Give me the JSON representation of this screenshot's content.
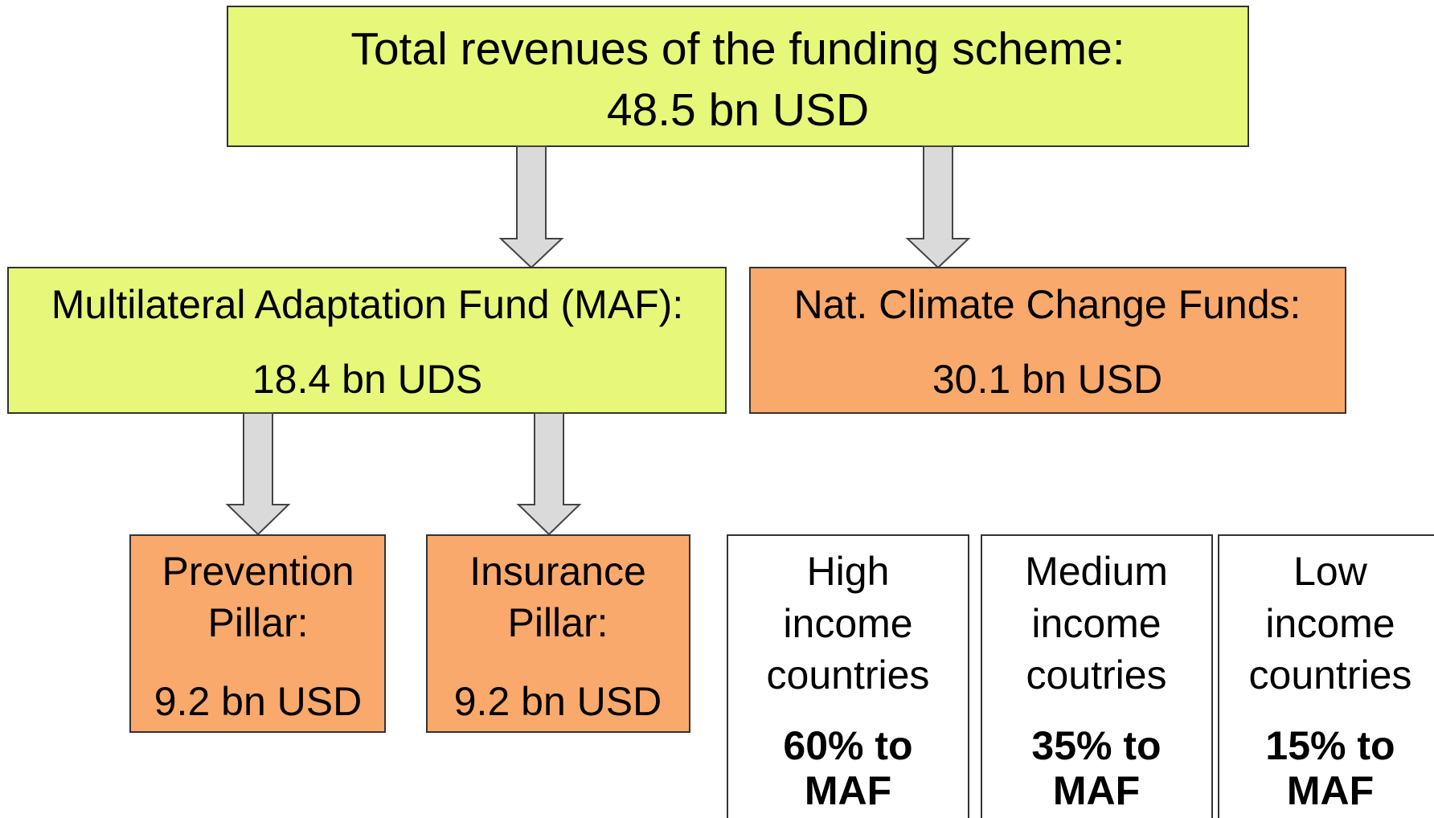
{
  "top": {
    "lines": [
      "Total revenues of the funding scheme:",
      "48.5 bn USD"
    ]
  },
  "maf": {
    "lines": [
      "Multilateral Adaptation Fund (MAF):",
      "18.4 bn UDS"
    ]
  },
  "nccf": {
    "lines": [
      "Nat. Climate Change Funds:",
      "30.1 bn USD"
    ]
  },
  "pillars": [
    {
      "lines": [
        "Prevention",
        "Pillar:"
      ],
      "value": "9.2 bn USD"
    },
    {
      "lines": [
        "Insurance",
        "Pillar:"
      ],
      "value": "9.2 bn USD"
    }
  ],
  "income_groups": [
    {
      "lines": [
        "High",
        "income",
        "countries"
      ],
      "share": [
        "60% to",
        "MAF"
      ]
    },
    {
      "lines": [
        "Medium",
        "income",
        "coutries"
      ],
      "share": [
        "35% to",
        "MAF"
      ]
    },
    {
      "lines": [
        "Low",
        "income",
        "countries"
      ],
      "share": [
        "15% to",
        "MAF"
      ]
    }
  ]
}
